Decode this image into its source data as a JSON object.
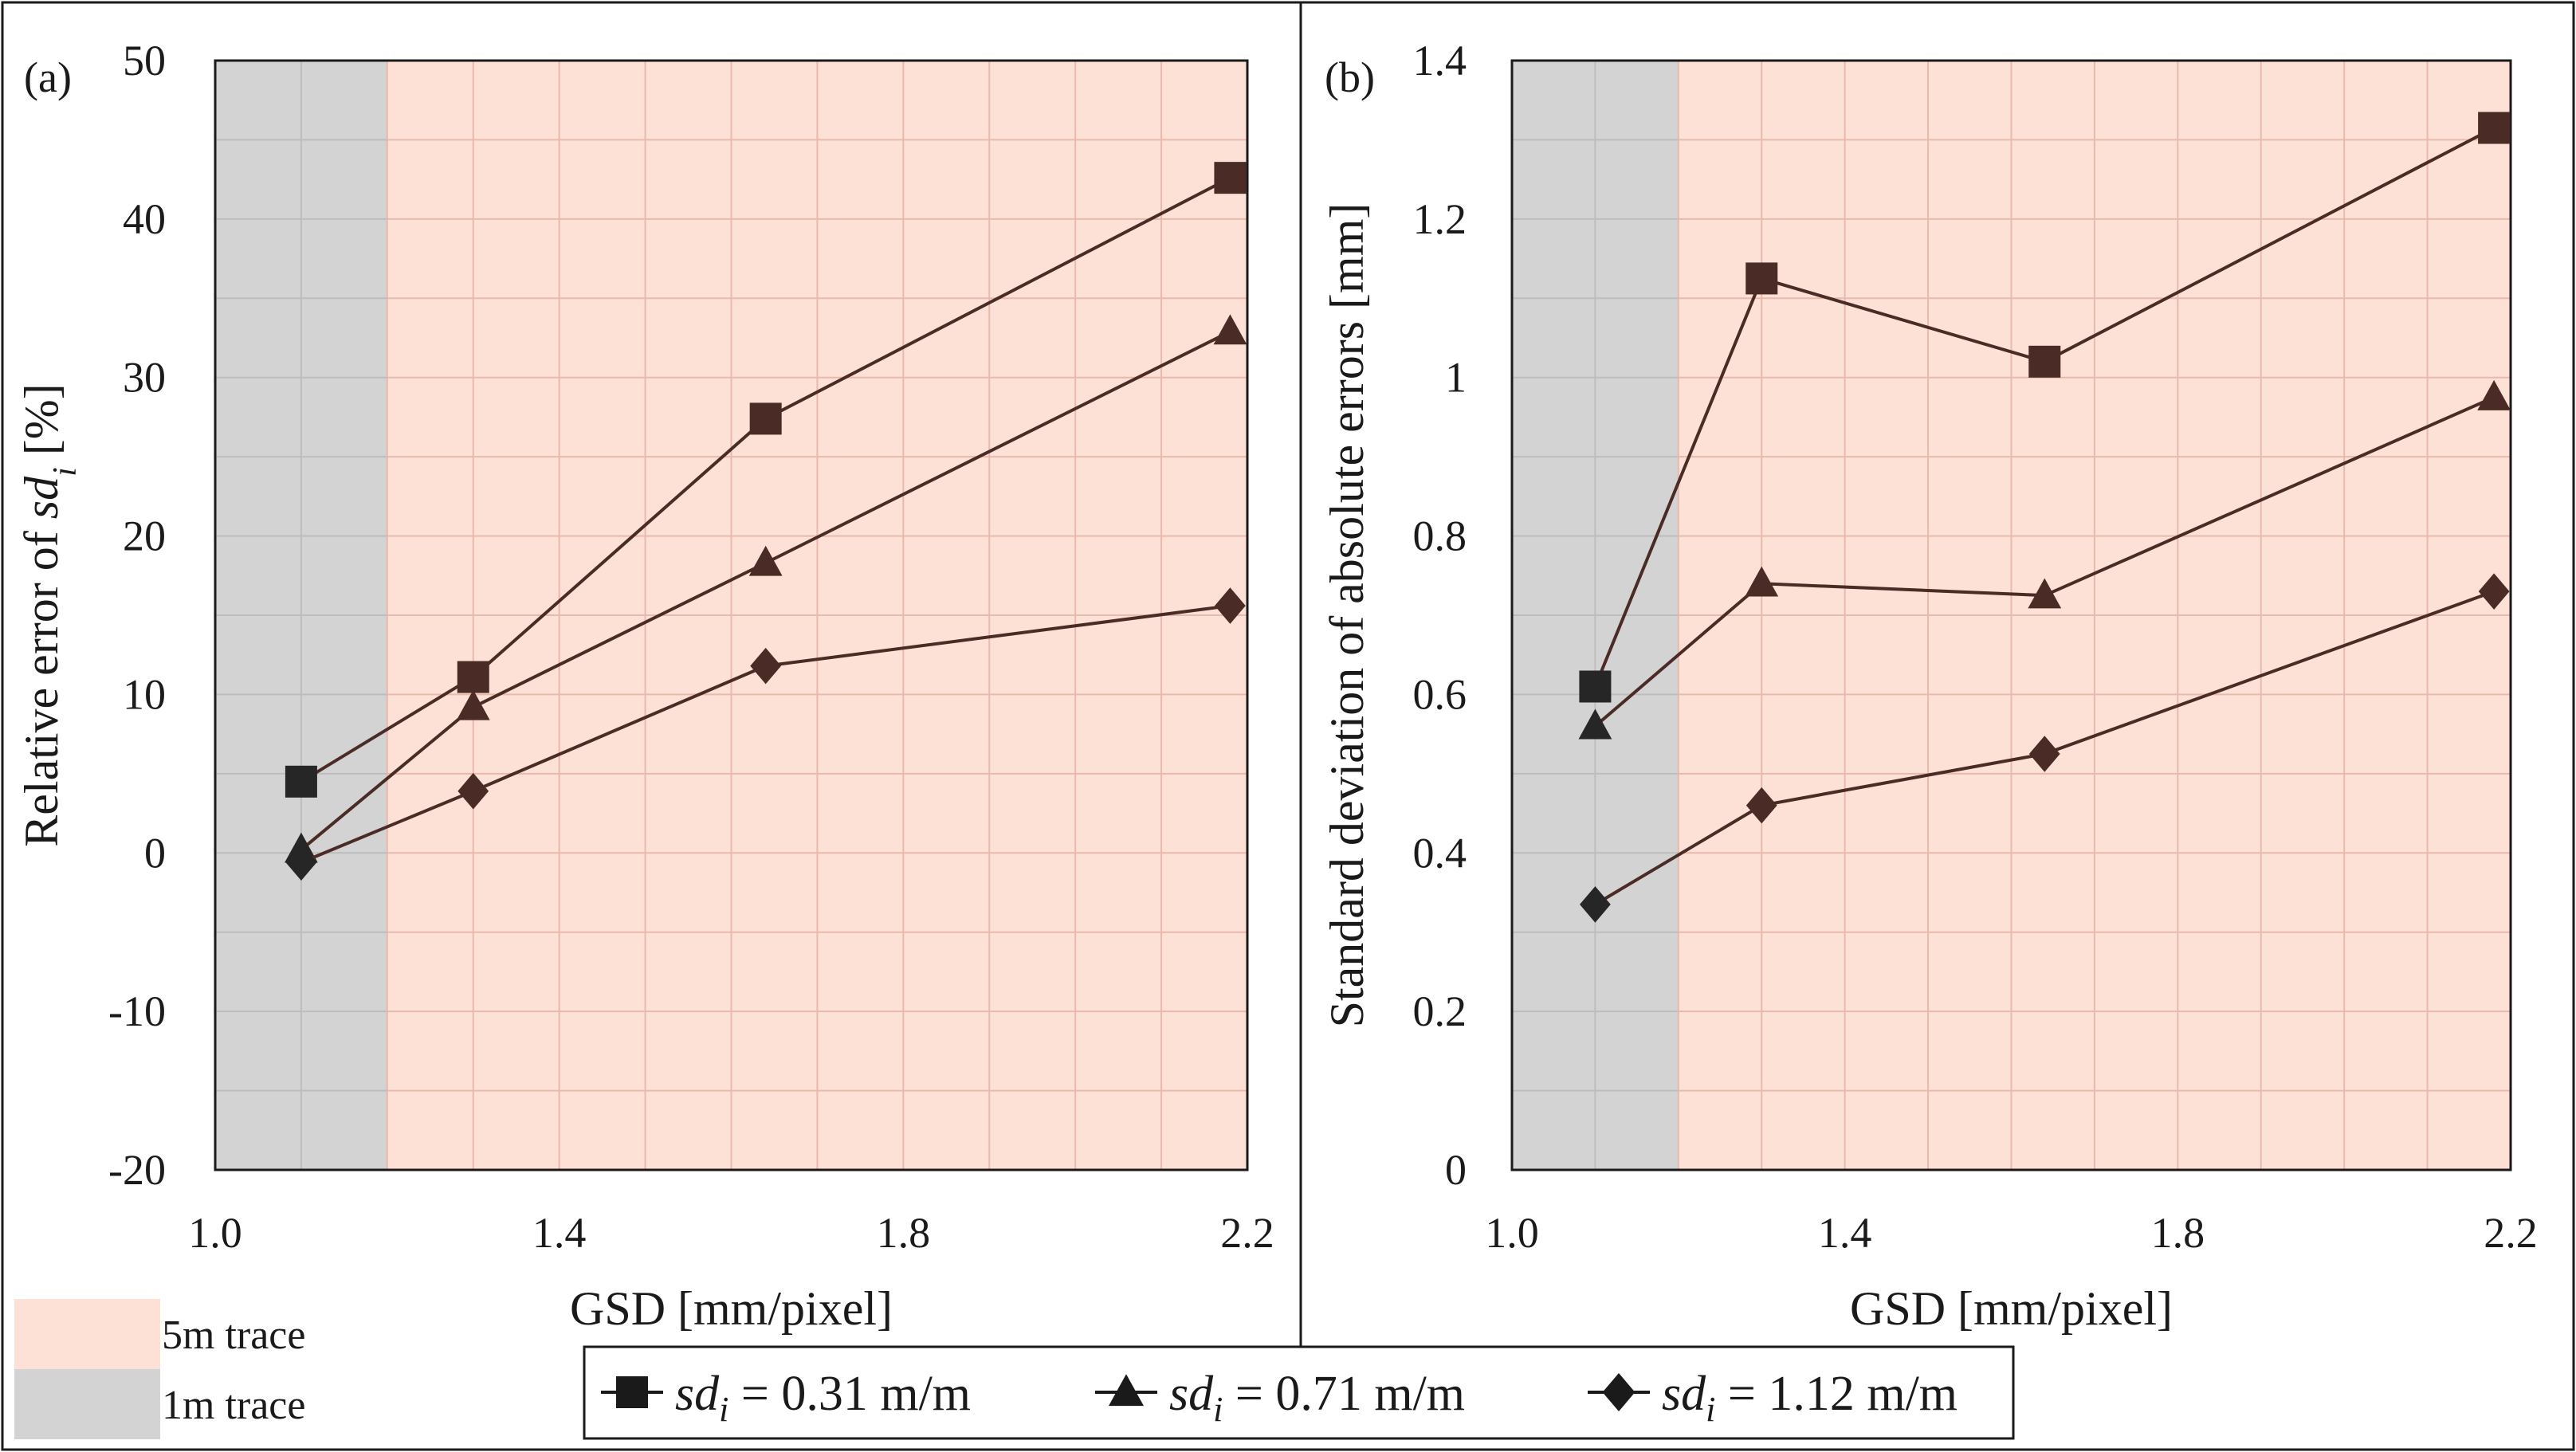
{
  "colors": {
    "background": "#ffffff",
    "frame": "#1a1a1a",
    "region_5m": "#fde0d6",
    "region_1m": "#d3d3d3",
    "grid": "#e9b9ad",
    "grid_gray": "#bdbdbd",
    "series_line": "#4a2b25",
    "marker_first": "#262626",
    "marker_rest": "#4a2b25"
  },
  "background_legend": {
    "items": [
      {
        "label": "5m trace",
        "color": "#fde0d6"
      },
      {
        "label": "1m trace",
        "color": "#d3d3d3"
      }
    ]
  },
  "series_legend": {
    "items": [
      {
        "marker": "square",
        "var": "sd",
        "sub": "i",
        "rest": " = 0.31 m/m"
      },
      {
        "marker": "triangle",
        "var": "sd",
        "sub": "i",
        "rest": " = 0.71 m/m"
      },
      {
        "marker": "diamond",
        "var": "sd",
        "sub": "i",
        "rest": " = 1.12 m/m"
      }
    ]
  },
  "chart_data": [
    {
      "panel_label": "(a)",
      "type": "line",
      "xlabel": "GSD [mm/pixel]",
      "ylabel_parts": [
        "Relative error of ",
        "sd",
        "i",
        " [%]"
      ],
      "xlim": [
        1.0,
        2.2
      ],
      "ylim": [
        -20,
        50
      ],
      "xticks": [
        1.0,
        1.4,
        1.8,
        2.2
      ],
      "xtick_labels": [
        "1.0",
        "1.4",
        "1.8",
        "2.2"
      ],
      "yticks": [
        -20,
        -10,
        0,
        10,
        20,
        30,
        40,
        50
      ],
      "ytick_labels": [
        "-20",
        "-10",
        "0",
        "10",
        "20",
        "30",
        "40",
        "50"
      ],
      "xgrid_step": 0.1,
      "ygrid_step": 5,
      "regions": [
        {
          "name": "1m trace",
          "x": [
            1.0,
            1.2
          ]
        },
        {
          "name": "5m trace",
          "x": [
            1.2,
            2.2
          ]
        }
      ],
      "x": [
        1.1,
        1.3,
        1.64,
        2.18
      ],
      "series": [
        {
          "name": "sdi = 0.31 m/m",
          "marker": "square",
          "values": [
            4.5,
            11.1,
            27.4,
            42.6
          ]
        },
        {
          "name": "sdi = 0.71 m/m",
          "marker": "triangle",
          "values": [
            0.2,
            9.2,
            18.3,
            32.9
          ]
        },
        {
          "name": "sdi = 1.12 m/m",
          "marker": "diamond",
          "values": [
            -0.6,
            3.9,
            11.8,
            15.6
          ]
        }
      ]
    },
    {
      "panel_label": "(b)",
      "type": "line",
      "xlabel": "GSD [mm/pixel]",
      "ylabel_parts": [
        "Standard deviation of absolute errors [mm]"
      ],
      "xlim": [
        1.0,
        2.2
      ],
      "ylim": [
        0,
        1.4
      ],
      "xticks": [
        1.0,
        1.4,
        1.8,
        2.2
      ],
      "xtick_labels": [
        "1.0",
        "1.4",
        "1.8",
        "2.2"
      ],
      "yticks": [
        0,
        0.2,
        0.4,
        0.6,
        0.8,
        1.0,
        1.2,
        1.4
      ],
      "ytick_labels": [
        "0",
        "0.2",
        "0.4",
        "0.6",
        "0.8",
        "1",
        "1.2",
        "1.4"
      ],
      "xgrid_step": 0.1,
      "ygrid_step": 0.1,
      "regions": [
        {
          "name": "1m trace",
          "x": [
            1.0,
            1.2
          ]
        },
        {
          "name": "5m trace",
          "x": [
            1.2,
            2.2
          ]
        }
      ],
      "x": [
        1.1,
        1.3,
        1.64,
        2.18
      ],
      "series": [
        {
          "name": "sdi = 0.31 m/m",
          "marker": "square",
          "values": [
            0.61,
            1.125,
            1.02,
            1.315
          ]
        },
        {
          "name": "sdi = 0.71 m/m",
          "marker": "triangle",
          "values": [
            0.56,
            0.74,
            0.725,
            0.975
          ]
        },
        {
          "name": "sdi = 1.12 m/m",
          "marker": "diamond",
          "values": [
            0.335,
            0.46,
            0.525,
            0.73
          ]
        }
      ]
    }
  ]
}
